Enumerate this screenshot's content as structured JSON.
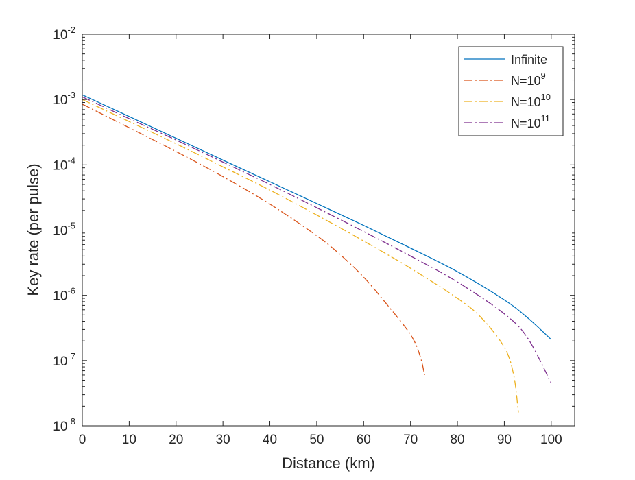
{
  "chart_data": {
    "type": "line",
    "title": "",
    "xlabel": "Distance (km)",
    "ylabel": "Key rate (per pulse)",
    "xlim": [
      0,
      105
    ],
    "ylim": [
      1e-08,
      0.01
    ],
    "yscale": "log",
    "xticks": [
      0,
      10,
      20,
      30,
      40,
      50,
      60,
      70,
      80,
      90,
      100
    ],
    "yticks": [
      {
        "value": 1e-08,
        "base": "10",
        "exp": "-8"
      },
      {
        "value": 1e-07,
        "base": "10",
        "exp": "-7"
      },
      {
        "value": 1e-06,
        "base": "10",
        "exp": "-6"
      },
      {
        "value": 1e-05,
        "base": "10",
        "exp": "-5"
      },
      {
        "value": 0.0001,
        "base": "10",
        "exp": "-4"
      },
      {
        "value": 0.001,
        "base": "10",
        "exp": "-3"
      },
      {
        "value": 0.01,
        "base": "10",
        "exp": "-2"
      }
    ],
    "grid": false,
    "legend_position": "top-right",
    "series": [
      {
        "label_base": "Infinite",
        "label_exp": "",
        "color": "#0072BD",
        "style": "solid",
        "points": [
          [
            0,
            0.00118
          ],
          [
            10,
            0.00055
          ],
          [
            20,
            0.000255
          ],
          [
            30,
            0.000118
          ],
          [
            40,
            5.5e-05
          ],
          [
            50,
            2.55e-05
          ],
          [
            60,
            1.18e-05
          ],
          [
            70,
            5.3e-06
          ],
          [
            80,
            2.3e-06
          ],
          [
            90,
            8.5e-07
          ],
          [
            95,
            4.5e-07
          ],
          [
            100,
            2.1e-07
          ]
        ]
      },
      {
        "label_base": "N=10",
        "label_exp": "9",
        "color": "#D95319",
        "style": "dashdot",
        "points": [
          [
            0,
            0.00085
          ],
          [
            10,
            0.00037
          ],
          [
            20,
            0.00016
          ],
          [
            30,
            6.6e-05
          ],
          [
            40,
            2.5e-05
          ],
          [
            50,
            8.2e-06
          ],
          [
            55,
            4.2e-06
          ],
          [
            60,
            1.9e-06
          ],
          [
            65,
            7.2e-07
          ],
          [
            70,
            2.5e-07
          ],
          [
            72,
            1.2e-07
          ],
          [
            73,
            6e-08
          ]
        ]
      },
      {
        "label_base": "N=10",
        "label_exp": "10",
        "color": "#EDB120",
        "style": "dashdot",
        "points": [
          [
            0,
            0.001
          ],
          [
            10,
            0.00046
          ],
          [
            20,
            0.00021
          ],
          [
            30,
            9.3e-05
          ],
          [
            40,
            4.1e-05
          ],
          [
            50,
            1.7e-05
          ],
          [
            60,
            6.8e-06
          ],
          [
            70,
            2.6e-06
          ],
          [
            80,
            9e-07
          ],
          [
            85,
            4.6e-07
          ],
          [
            90,
            1.6e-07
          ],
          [
            92,
            6e-08
          ],
          [
            93,
            1.6e-08
          ]
        ]
      },
      {
        "label_base": "N=10",
        "label_exp": "11",
        "color": "#7E2F8E",
        "style": "dashdot",
        "points": [
          [
            0,
            0.0011
          ],
          [
            10,
            0.00051
          ],
          [
            20,
            0.00024
          ],
          [
            30,
            0.00011
          ],
          [
            40,
            5e-05
          ],
          [
            50,
            2.2e-05
          ],
          [
            60,
            9.5e-06
          ],
          [
            70,
            4e-06
          ],
          [
            80,
            1.6e-06
          ],
          [
            90,
            5.2e-07
          ],
          [
            95,
            2.2e-07
          ],
          [
            100,
            4.5e-08
          ]
        ]
      }
    ]
  }
}
